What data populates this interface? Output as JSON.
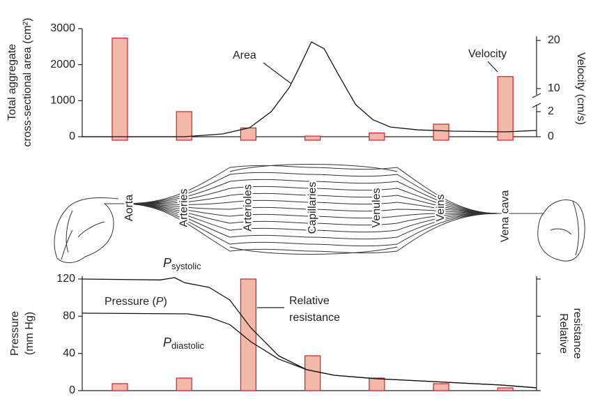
{
  "chart_data": [
    {
      "type": "bar",
      "ylabel": [
        "Total aggregate",
        "cross-sectional area (cm²)"
      ],
      "ylim": [
        0,
        3000
      ],
      "yticks": [
        0,
        1000,
        2000,
        3000
      ],
      "y2label": "Velocity (cm/s)",
      "y2lim": [
        0,
        20
      ],
      "y2ticks": [
        0,
        2,
        10,
        20
      ],
      "categories": [
        "Aorta",
        "Arteries",
        "Arterioles",
        "Capillaries",
        "Venules",
        "Veins",
        "Vena cava"
      ],
      "series": [
        {
          "name": "Velocity",
          "axis": "y2",
          "color": "#f2b8a8",
          "edge": "#d0202e",
          "values": [
            20.5,
            2,
            0.7,
            0.05,
            0.3,
            1,
            12.5
          ]
        },
        {
          "name": "Area",
          "type": "line",
          "color": "#111",
          "x": [
            -0.59,
            0,
            1,
            1.6,
            2.02,
            2.36,
            2.64,
            2.8,
            2.98,
            3.18,
            3.39,
            3.67,
            3.94,
            4.21,
            4.64,
            5.18,
            6,
            6.49
          ],
          "values": [
            0,
            0,
            0,
            77,
            250,
            700,
            1375,
            1950,
            2630,
            2440,
            1760,
            890,
            470,
            270,
            190,
            155,
            135,
            175
          ]
        }
      ]
    },
    {
      "type": "bar",
      "ylabel": [
        "Pressure",
        "(mm Hg)"
      ],
      "ylim": [
        0,
        120
      ],
      "yticks": [
        0,
        40,
        80,
        120
      ],
      "y2label": [
        "Relative",
        "resistance"
      ],
      "y2lim": [
        0,
        120
      ],
      "annotation": [
        "Pressure (",
        "P",
        ")"
      ],
      "series": [
        {
          "name": [
            "Relative",
            "resistance"
          ],
          "axis": "y2",
          "color": "#f2b8a8",
          "edge": "#d0202e",
          "values": [
            7.5,
            13.5,
            120,
            37.5,
            13.5,
            7.5,
            3
          ]
        },
        {
          "name": {
            "symbol": "P",
            "subscript": "systolic"
          },
          "type": "line",
          "color": "#111",
          "x": [
            -0.59,
            0.63,
            0.85,
            1.01,
            1.39,
            1.71,
            2.04,
            2.47,
            2.91,
            3.34,
            3.99,
            5.08,
            5.94,
            6.49
          ],
          "values": [
            120,
            119,
            121.5,
            116,
            111,
            97.5,
            67.5,
            37.5,
            22.5,
            16.5,
            12.8,
            9,
            6,
            3
          ]
        },
        {
          "name": {
            "symbol": "P",
            "subscript": "diastolic"
          },
          "type": "line",
          "color": "#111",
          "x": [
            -0.59,
            1.06,
            1.39,
            1.71,
            2.04,
            2.47,
            2.91,
            3.34,
            3.99,
            5.08,
            5.94,
            6.49
          ],
          "values": [
            83.3,
            82.5,
            79,
            71,
            52.5,
            34,
            22.5,
            16.5,
            12.8,
            9,
            6,
            3
          ]
        }
      ]
    }
  ]
}
